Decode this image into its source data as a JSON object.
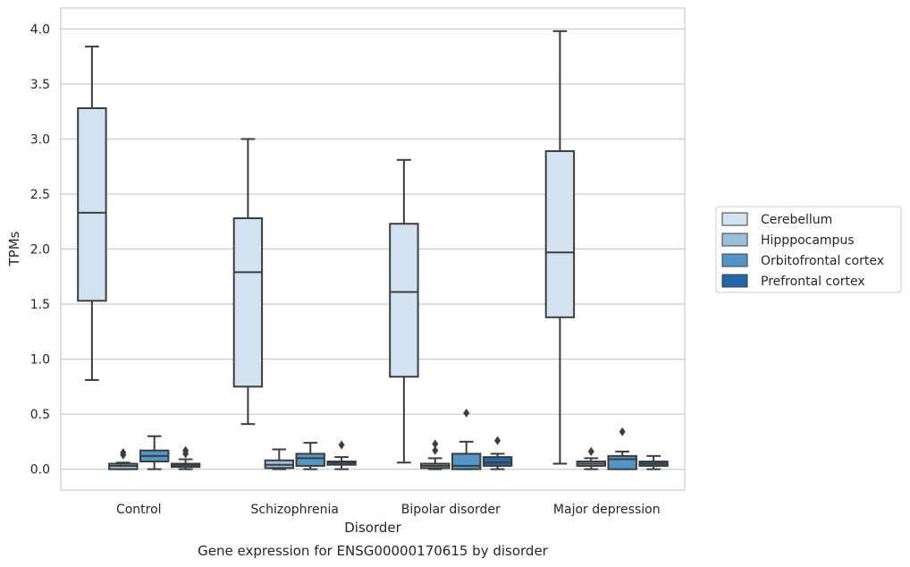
{
  "chart_data": {
    "type": "box",
    "title": "",
    "caption": "Gene expression for ENSG00000170615 by disorder",
    "xlabel": "Disorder",
    "ylabel": "TPMs",
    "ylim": [
      -0.19,
      4.19
    ],
    "yticks": [
      "0.0",
      "0.5",
      "1.0",
      "1.5",
      "2.0",
      "2.5",
      "3.0",
      "3.5",
      "4.0"
    ],
    "grid": true,
    "legend_position": "right",
    "categories": [
      "Control",
      "Schizophrenia",
      "Bipolar disorder",
      "Major depression"
    ],
    "series": [
      {
        "name": "Cerebellum",
        "color": "#d2e2f0",
        "boxes": [
          {
            "category": "Control",
            "min": 0.81,
            "q1": 1.53,
            "median": 2.33,
            "q3": 3.28,
            "max": 3.84,
            "outliers": []
          },
          {
            "category": "Schizophrenia",
            "min": 0.41,
            "q1": 0.75,
            "median": 1.79,
            "q3": 2.28,
            "max": 3.0,
            "outliers": []
          },
          {
            "category": "Bipolar disorder",
            "min": 0.06,
            "q1": 0.84,
            "median": 1.61,
            "q3": 2.23,
            "max": 2.81,
            "outliers": []
          },
          {
            "category": "Major depression",
            "min": 0.05,
            "q1": 1.38,
            "median": 1.97,
            "q3": 2.89,
            "max": 3.98,
            "outliers": []
          }
        ]
      },
      {
        "name": "Hipppocampus",
        "color": "#9ac1d9",
        "boxes": [
          {
            "category": "Control",
            "min": 0.0,
            "q1": 0.0,
            "median": 0.03,
            "q3": 0.05,
            "max": 0.06,
            "outliers": [
              0.13,
              0.15
            ]
          },
          {
            "category": "Schizophrenia",
            "min": 0.0,
            "q1": 0.01,
            "median": 0.04,
            "q3": 0.08,
            "max": 0.18,
            "outliers": []
          },
          {
            "category": "Bipolar disorder",
            "min": 0.0,
            "q1": 0.01,
            "median": 0.03,
            "q3": 0.05,
            "max": 0.1,
            "outliers": [
              0.17,
              0.23
            ]
          },
          {
            "category": "Major depression",
            "min": 0.0,
            "q1": 0.03,
            "median": 0.05,
            "q3": 0.07,
            "max": 0.1,
            "outliers": [
              0.16
            ]
          }
        ]
      },
      {
        "name": "Orbitofrontal cortex",
        "color": "#5295c6",
        "boxes": [
          {
            "category": "Control",
            "min": 0.0,
            "q1": 0.07,
            "median": 0.12,
            "q3": 0.17,
            "max": 0.3,
            "outliers": []
          },
          {
            "category": "Schizophrenia",
            "min": 0.0,
            "q1": 0.03,
            "median": 0.1,
            "q3": 0.14,
            "max": 0.24,
            "outliers": []
          },
          {
            "category": "Bipolar disorder",
            "min": 0.0,
            "q1": 0.0,
            "median": 0.03,
            "q3": 0.14,
            "max": 0.25,
            "outliers": [
              0.51
            ]
          },
          {
            "category": "Major depression",
            "min": 0.0,
            "q1": 0.0,
            "median": 0.09,
            "q3": 0.12,
            "max": 0.16,
            "outliers": [
              0.34
            ]
          }
        ]
      },
      {
        "name": "Prefrontal cortex",
        "color": "#2466a8",
        "boxes": [
          {
            "category": "Control",
            "min": 0.0,
            "q1": 0.02,
            "median": 0.04,
            "q3": 0.05,
            "max": 0.09,
            "outliers": [
              0.14,
              0.17
            ]
          },
          {
            "category": "Schizophrenia",
            "min": 0.0,
            "q1": 0.04,
            "median": 0.06,
            "q3": 0.07,
            "max": 0.11,
            "outliers": [
              0.22
            ]
          },
          {
            "category": "Bipolar disorder",
            "min": 0.0,
            "q1": 0.03,
            "median": 0.06,
            "q3": 0.11,
            "max": 0.14,
            "outliers": [
              0.26
            ]
          },
          {
            "category": "Major depression",
            "min": 0.0,
            "q1": 0.03,
            "median": 0.05,
            "q3": 0.07,
            "max": 0.12,
            "outliers": []
          }
        ]
      }
    ]
  }
}
